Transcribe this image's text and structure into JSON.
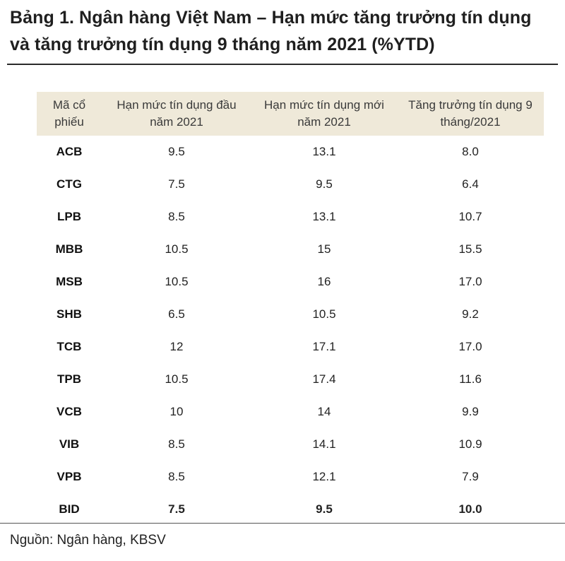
{
  "title": "Bảng 1. Ngân hàng Việt Nam – Hạn mức tăng trưởng tín dụng và tăng trưởng tín dụng 9 tháng năm 2021 (%YTD)",
  "table": {
    "headers": [
      "Mã cổ phiếu",
      "Hạn mức tín dụng đầu năm 2021",
      "Hạn mức tín dụng mới năm 2021",
      "Tăng trưởng tín dụng 9 tháng/2021"
    ],
    "rows": [
      {
        "code": "ACB",
        "initial_limit": "9.5",
        "new_limit": "13.1",
        "growth": "8.0"
      },
      {
        "code": "CTG",
        "initial_limit": "7.5",
        "new_limit": "9.5",
        "growth": "6.4"
      },
      {
        "code": "LPB",
        "initial_limit": "8.5",
        "new_limit": "13.1",
        "growth": "10.7"
      },
      {
        "code": "MBB",
        "initial_limit": "10.5",
        "new_limit": "15",
        "growth": "15.5"
      },
      {
        "code": "MSB",
        "initial_limit": "10.5",
        "new_limit": "16",
        "growth": "17.0"
      },
      {
        "code": "SHB",
        "initial_limit": "6.5",
        "new_limit": "10.5",
        "growth": "9.2"
      },
      {
        "code": "TCB",
        "initial_limit": "12",
        "new_limit": "17.1",
        "growth": "17.0"
      },
      {
        "code": "TPB",
        "initial_limit": "10.5",
        "new_limit": "17.4",
        "growth": "11.6"
      },
      {
        "code": "VCB",
        "initial_limit": "10",
        "new_limit": "14",
        "growth": "9.9"
      },
      {
        "code": "VIB",
        "initial_limit": "8.5",
        "new_limit": "14.1",
        "growth": "10.9"
      },
      {
        "code": "VPB",
        "initial_limit": "8.5",
        "new_limit": "12.1",
        "growth": "7.9"
      },
      {
        "code": "BID",
        "initial_limit": "7.5",
        "new_limit": "9.5",
        "growth": "10.0"
      }
    ]
  },
  "source": "Nguồn: Ngân hàng, KBSV",
  "colors": {
    "header_bg": "#efe9d9",
    "rule": "#2a2a2a"
  }
}
